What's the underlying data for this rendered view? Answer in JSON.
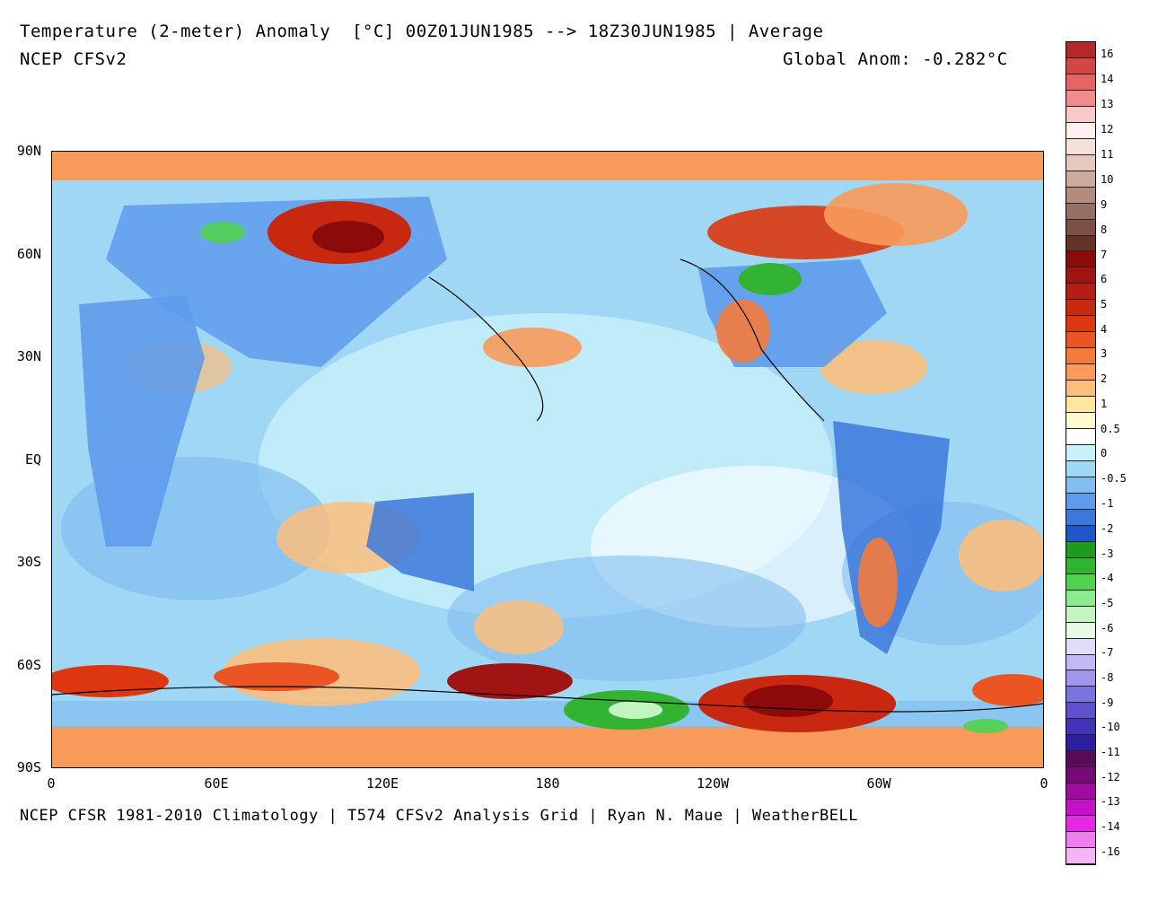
{
  "header": {
    "title_line1": "Temperature (2-meter) Anomaly  [°C] 00Z01JUN1985 --> 18Z30JUN1985 | Average",
    "title_line2": "NCEP CFSv2",
    "global_anomaly": "Global Anom: -0.282°C"
  },
  "footer": {
    "credits": "NCEP CFSR 1981-2010 Climatology | T574 CFSv2 Analysis Grid | Ryan N. Maue | WeatherBELL"
  },
  "axes": {
    "y_labels": [
      "90N",
      "60N",
      "30N",
      "EQ",
      "30S",
      "60S",
      "90S"
    ],
    "x_labels": [
      "0",
      "60E",
      "120E",
      "180",
      "120W",
      "60W",
      "0"
    ]
  },
  "colorbar": {
    "labels": [
      "16",
      "14",
      "13",
      "12",
      "11",
      "10",
      "9",
      "8",
      "7",
      "6",
      "5",
      "4",
      "3",
      "2",
      "1",
      "0.5",
      "0",
      "-0.5",
      "-1",
      "-2",
      "-3",
      "-4",
      "-5",
      "-6",
      "-7",
      "-8",
      "-9",
      "-10",
      "-11",
      "-12",
      "-13",
      "-14",
      "-16"
    ],
    "colors": [
      "#b42828",
      "#d24646",
      "#e66464",
      "#f08c8c",
      "#fac8c8",
      "#fff0f0",
      "#f5e1dc",
      "#e6c8be",
      "#cdaa9b",
      "#b48c7d",
      "#967064",
      "#7d5046",
      "#643228",
      "#8c0a0a",
      "#a01414",
      "#b41e14",
      "#c8280f",
      "#dc370f",
      "#eb5523",
      "#f47a3c",
      "#f89b5a",
      "#fbbe7d",
      "#fde6a0",
      "#fffad2",
      "#ffffff",
      "#c8f0fa",
      "#a0d7f5",
      "#82bef0",
      "#5f9bec",
      "#3c78dc",
      "#1e55c8",
      "#1e9b1e",
      "#32b432",
      "#50d250",
      "#8ceb8c",
      "#c3f5c3",
      "#e6fae6",
      "#e1dcfa",
      "#c3b9f5",
      "#a096eb",
      "#7d73dc",
      "#5f50cd",
      "#4132b9",
      "#2d1ea0",
      "#5a0a5a",
      "#780a78",
      "#a00aa0",
      "#c80fc8",
      "#e628e6",
      "#f07df0",
      "#f5b4f5"
    ]
  },
  "map_colors": {
    "ocean_cool": "#c8f0fa",
    "cool": "#82bef0",
    "cold": "#3c78dc",
    "warm": "#fbbe7d",
    "hot": "#dc370f",
    "very_hot": "#8c0a0a",
    "very_cold": "#32b432",
    "neutral": "#ffffff"
  }
}
